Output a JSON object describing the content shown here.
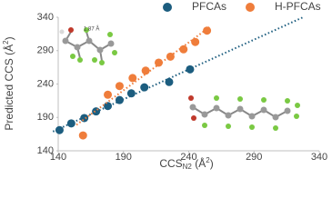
{
  "chart_data": {
    "type": "scatter",
    "xlabel": [
      "CCS",
      "N2",
      " (Å",
      "2",
      ")"
    ],
    "ylabel": [
      "Predicted CCS (Å",
      "2",
      ")"
    ],
    "annotations": [
      "1.87 Å"
    ],
    "xlim": [
      140,
      340
    ],
    "xticks": [
      140,
      190,
      240,
      290,
      340
    ],
    "ylim": [
      140,
      340
    ],
    "yticks": [
      140,
      190,
      240,
      290,
      340
    ],
    "legend": "top",
    "trendline": true,
    "series": [
      {
        "name": "PFCAs",
        "color": "#1c5d7f",
        "x": [
          141,
          150,
          160,
          169,
          178,
          187,
          196,
          206,
          225,
          241
        ],
        "values": [
          171,
          181,
          189,
          199,
          207,
          216,
          226,
          235,
          243,
          262
        ]
      },
      {
        "name": "H-PFCAs",
        "color": "#ef7d3b",
        "x": [
          159,
          178,
          187,
          197,
          207,
          217,
          226,
          236,
          245,
          254
        ],
        "values": [
          163,
          224,
          237,
          249,
          260,
          272,
          281,
          292,
          303,
          320
        ]
      }
    ]
  }
}
